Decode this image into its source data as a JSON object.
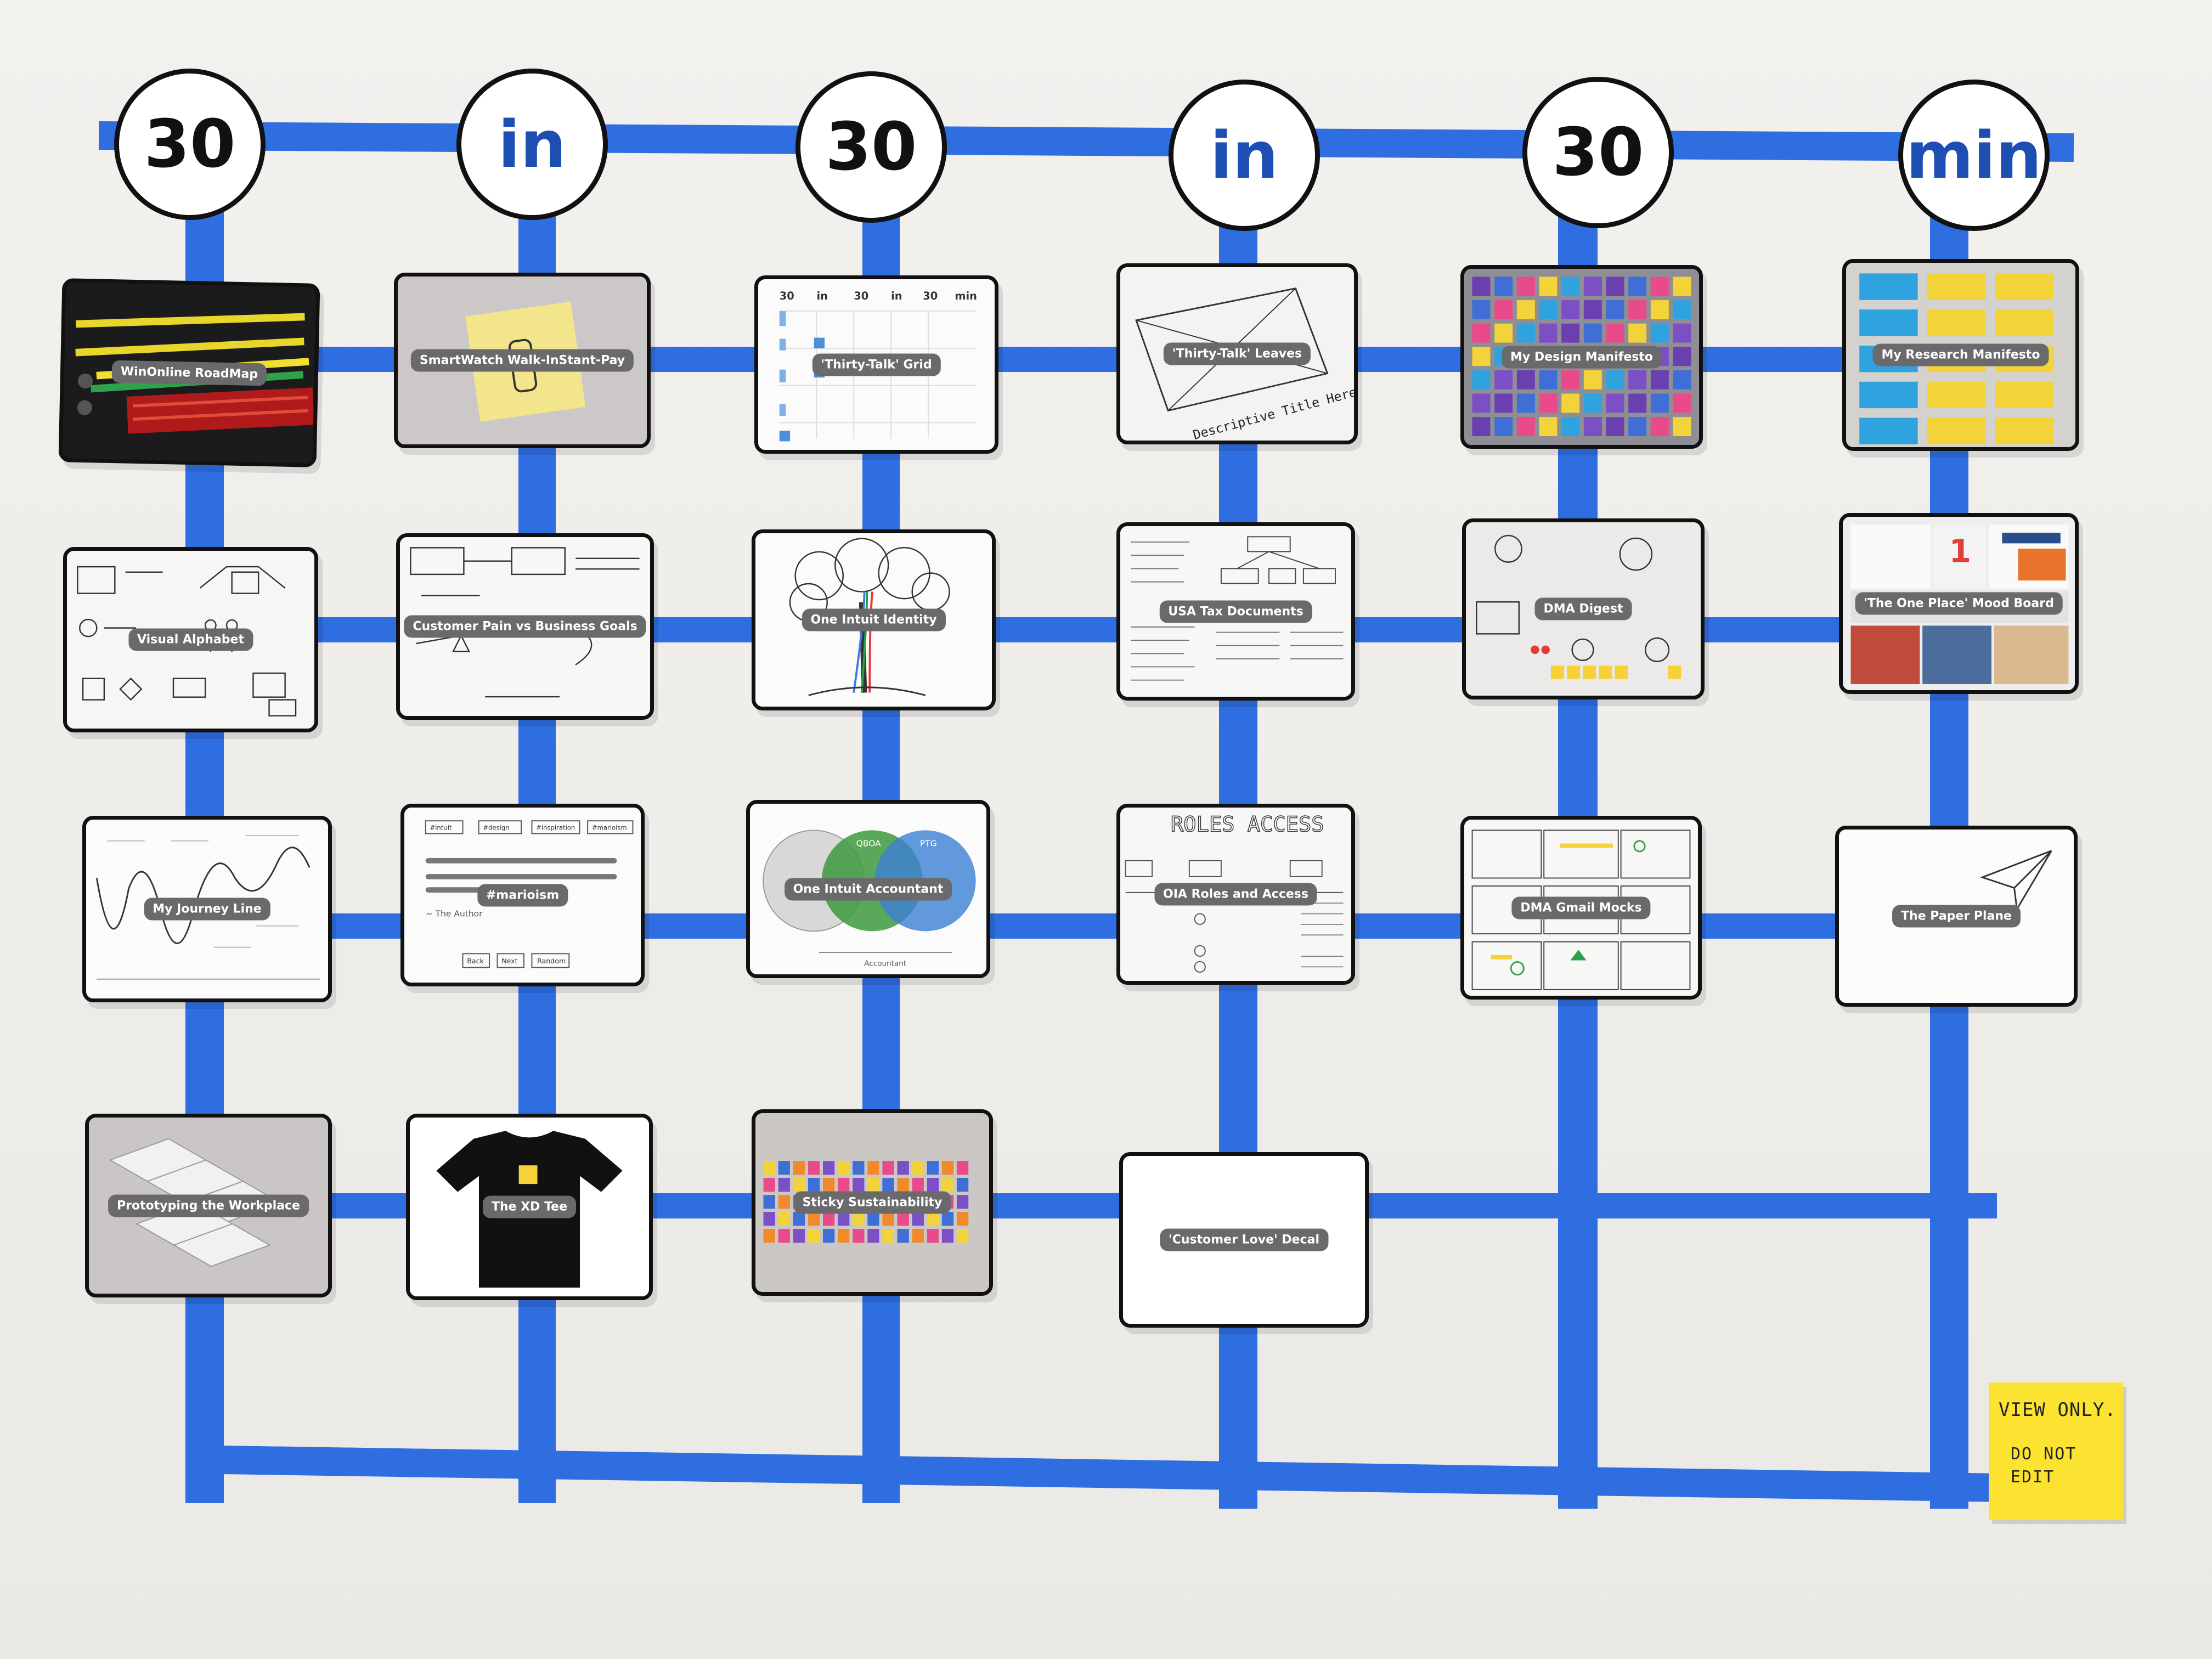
{
  "header": {
    "circles": [
      "30",
      "in",
      "30",
      "in",
      "30",
      "min"
    ]
  },
  "cards": [
    {
      "title": "WinOnline RoadMap"
    },
    {
      "title": "SmartWatch Walk-InStant-Pay"
    },
    {
      "title": "'Thirty-Talk' Grid"
    },
    {
      "title": "'Thirty-Talk' Leaves"
    },
    {
      "title": "My Design Manifesto"
    },
    {
      "title": "My Research Manifesto"
    },
    {
      "title": "Visual Alphabet"
    },
    {
      "title": "Customer Pain vs Business Goals"
    },
    {
      "title": "One Intuit Identity"
    },
    {
      "title": "USA Tax Documents"
    },
    {
      "title": "DMA Digest"
    },
    {
      "title": "'The One Place' Mood Board"
    },
    {
      "title": "My Journey Line"
    },
    {
      "title": "#marioism"
    },
    {
      "title": "One Intuit Accountant"
    },
    {
      "title": "OIA Roles and Access"
    },
    {
      "title": "DMA Gmail Mocks"
    },
    {
      "title": "The Paper Plane"
    },
    {
      "title": "Prototyping the Workplace"
    },
    {
      "title": "The XD Tee"
    },
    {
      "title": "Sticky Sustainability"
    },
    {
      "title": "'Customer Love' Decal"
    }
  ],
  "card_details": {
    "grid_header": [
      "30",
      "in",
      "30",
      "in",
      "30",
      "min"
    ],
    "leaves_caption": "Descriptive Title Here",
    "marioism_tags": [
      "#intuit",
      "#design",
      "#inspiration",
      "#marioism"
    ],
    "marioism_author": "~ The Author",
    "marioism_buttons": [
      "Back",
      "Next",
      "Random"
    ],
    "accountant_labels": [
      "QBOA",
      "PTG",
      "Accountant"
    ],
    "roles_heading": "ROLES ACCESS"
  },
  "sticky_note": {
    "line1": "VIEW ONLY.",
    "line2": "DO NOT",
    "line3": "EDIT"
  },
  "colors": {
    "tape": "#2f6ee0",
    "note": "#fce332",
    "pill": "#6a6a6c"
  }
}
